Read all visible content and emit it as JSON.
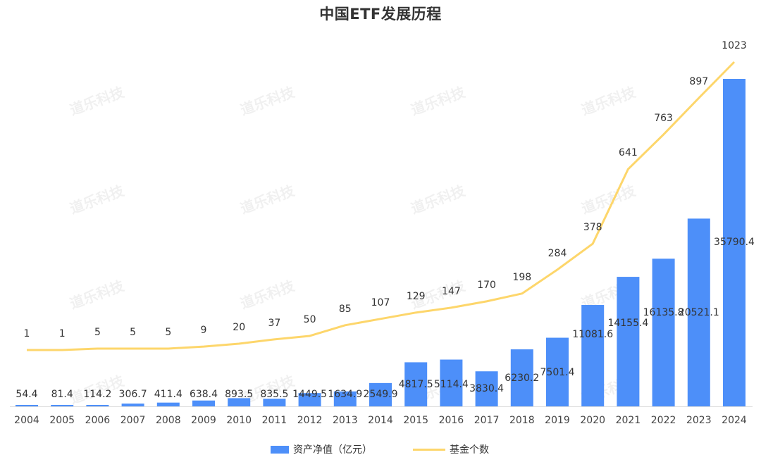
{
  "title": "中国ETF发展历程",
  "watermark": "道乐科技",
  "colors": {
    "bar": "#4d8ff9",
    "line": "#fdd66b",
    "text": "#333333",
    "axis": "#dddddd"
  },
  "legend": {
    "bar_label": "资产净值（亿元）",
    "line_label": "基金个数"
  },
  "chart_data": {
    "type": "bar+line",
    "title": "中国ETF发展历程",
    "xlabel": "",
    "ylabel": "",
    "categories": [
      "2004",
      "2005",
      "2006",
      "2007",
      "2008",
      "2009",
      "2010",
      "2011",
      "2012",
      "2013",
      "2014",
      "2015",
      "2016",
      "2017",
      "2018",
      "2019",
      "2020",
      "2021",
      "2022",
      "2023",
      "2024"
    ],
    "series": [
      {
        "name": "资产净值（亿元）",
        "type": "bar",
        "values": [
          54.4,
          81.4,
          114.2,
          306.7,
          411.4,
          638.4,
          893.5,
          835.5,
          1449.5,
          1634.9,
          2549.9,
          4817.5,
          5114.4,
          3830.4,
          6230.2,
          7501.4,
          11081.6,
          14155.4,
          16135.8,
          20521.1,
          35790.4
        ]
      },
      {
        "name": "基金个数",
        "type": "line",
        "values": [
          1,
          1,
          5,
          5,
          5,
          9,
          20,
          37,
          50,
          85,
          107,
          129,
          147,
          170,
          198,
          284,
          378,
          641,
          763,
          897,
          1023
        ]
      }
    ],
    "legend_position": "bottom",
    "grid": false,
    "axes_visible": {
      "y": false,
      "x": true
    }
  }
}
